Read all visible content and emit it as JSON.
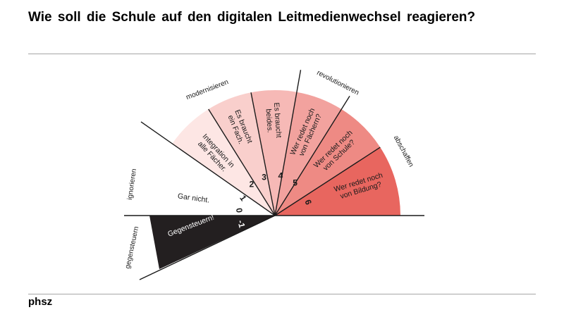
{
  "title": "Wie soll die Schule auf den digitalen  Leitmedienwechsel reagieren?",
  "footer": "phsz",
  "categories": {
    "ignorieren": "ignorieren",
    "gegensteuern": "gegensteuern",
    "modernisieren": "modernisieren",
    "revolutionieren": "revolutionieren",
    "abschaffen": "abschaffen"
  },
  "segments": [
    {
      "number": "-1",
      "lines": [
        "Gegensteuern!"
      ],
      "color": "#231f20"
    },
    {
      "number": "0",
      "lines": [
        "Gar nicht."
      ],
      "color": "#ffffff"
    },
    {
      "number": "1",
      "lines": [
        "Integration in",
        "alle Fächer."
      ],
      "color": "#fde6e4"
    },
    {
      "number": "2",
      "lines": [
        "Es braucht",
        "ein Fach."
      ],
      "color": "#f9cfcc"
    },
    {
      "number": "3",
      "lines": [
        "Es braucht",
        "beides."
      ],
      "color": "#f6b9b6"
    },
    {
      "number": "4",
      "lines": [
        "Wer redet noch",
        "von Fächern?"
      ],
      "color": "#f2a29e"
    },
    {
      "number": "5",
      "lines": [
        "Wer redet noch",
        "von Schule?"
      ],
      "color": "#ee8a84"
    },
    {
      "number": "6",
      "lines": [
        "Wer redet noch",
        "von Bildung?"
      ],
      "color": "#e8665f"
    }
  ]
}
